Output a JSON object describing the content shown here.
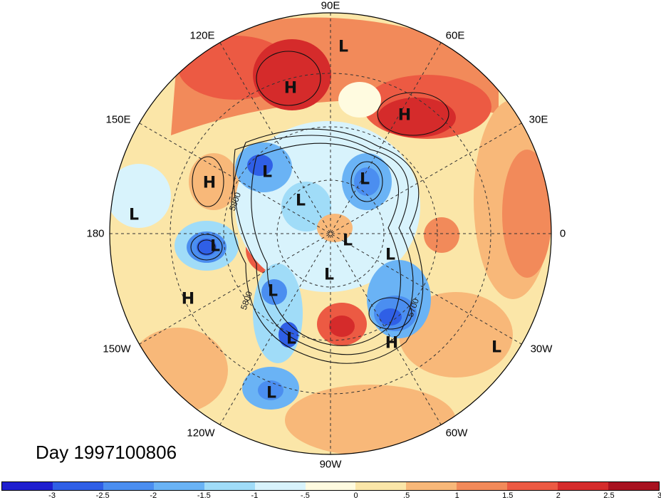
{
  "title": "Day 1997100806",
  "longitude_labels": [
    "90E",
    "60E",
    "30E",
    "0",
    "30W",
    "60W",
    "90W",
    "120W",
    "150W",
    "180",
    "150E",
    "120E"
  ],
  "contour_labels": [
    "5800",
    "5800",
    "5700"
  ],
  "pressure_centers": [
    {
      "label": "L"
    },
    {
      "label": "H"
    },
    {
      "label": "H"
    },
    {
      "label": "L"
    },
    {
      "label": "L"
    },
    {
      "label": "H"
    },
    {
      "label": "L"
    },
    {
      "label": "L"
    },
    {
      "label": "L"
    },
    {
      "label": "L"
    },
    {
      "label": "L"
    },
    {
      "label": "L"
    },
    {
      "label": "H"
    },
    {
      "label": "L"
    },
    {
      "label": "L"
    },
    {
      "label": "H"
    },
    {
      "label": "L"
    },
    {
      "label": "L"
    }
  ],
  "colorbar": {
    "ticks": [
      "-3",
      "-2.5",
      "-2",
      "-1.5",
      "-1",
      "-.5",
      "0",
      ".5",
      "1",
      "1.5",
      "2",
      "2.5",
      "3"
    ],
    "colors": [
      "#1f1fcf",
      "#2f5fe6",
      "#4b8ef0",
      "#6ab3f5",
      "#a0dcf8",
      "#d8f3fc",
      "#fffbe0",
      "#fbe6a8",
      "#f8b879",
      "#f28a5a",
      "#ec5a43",
      "#d52b2b",
      "#a81220"
    ]
  }
}
